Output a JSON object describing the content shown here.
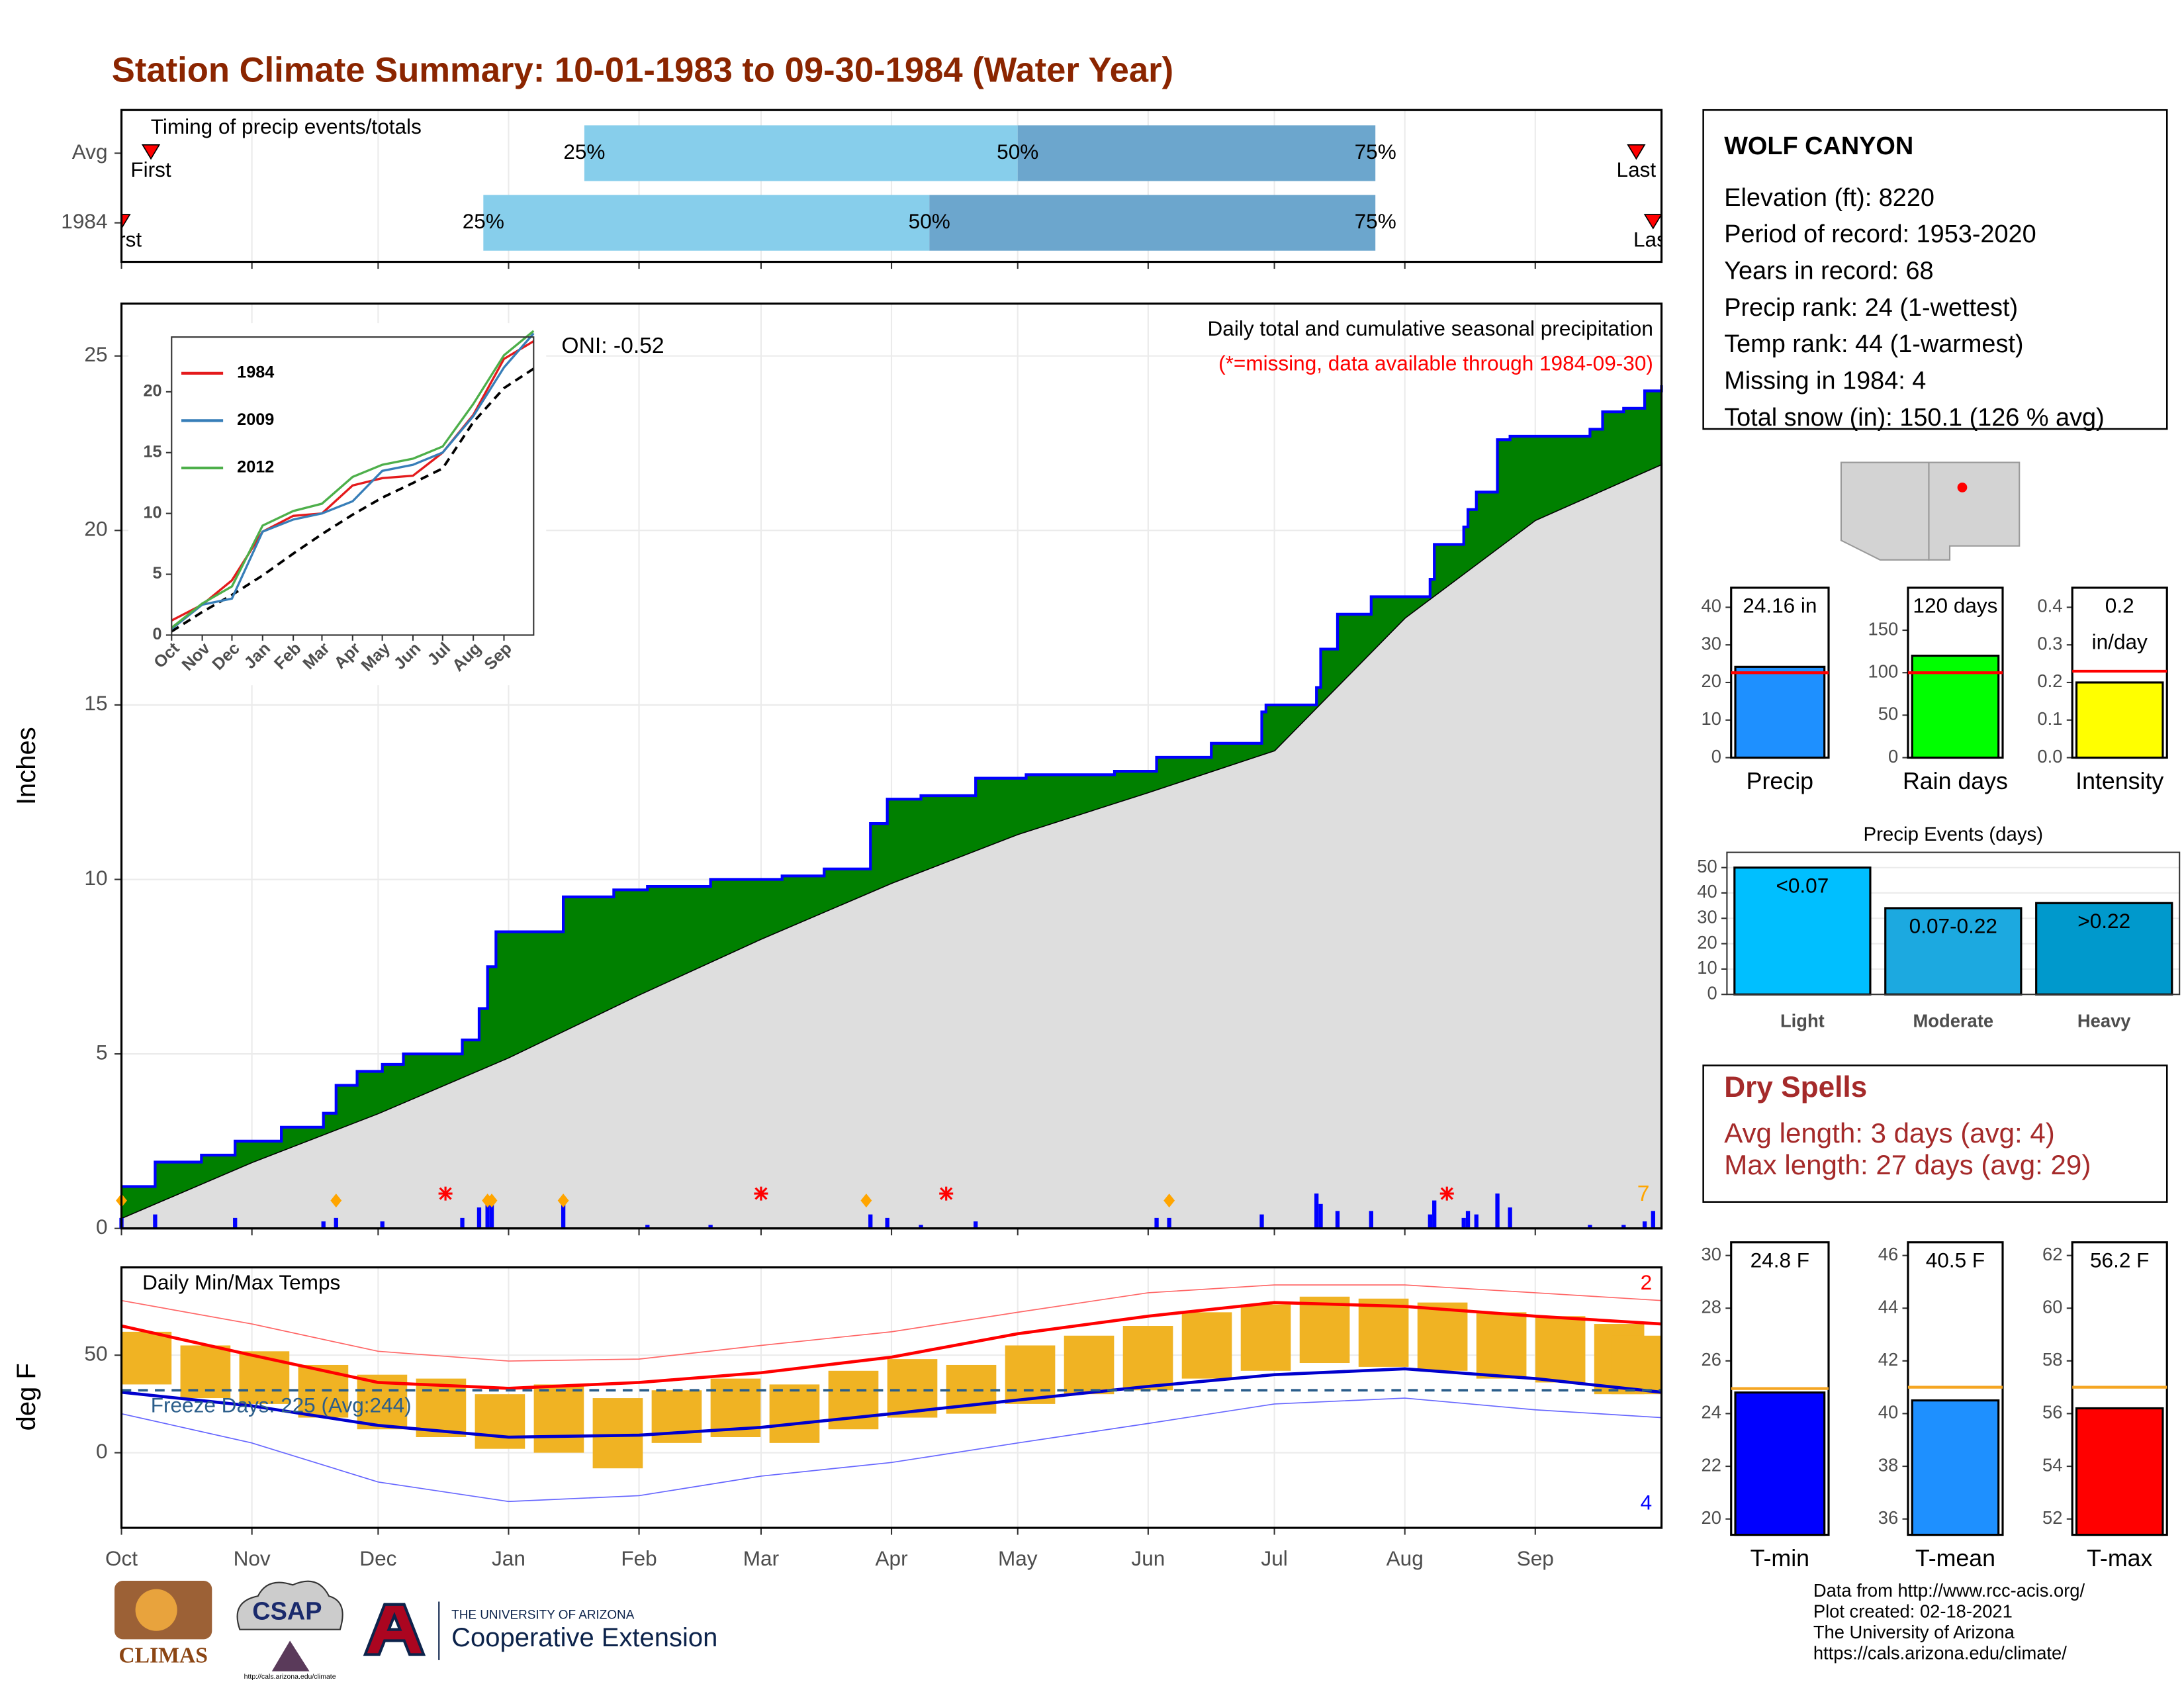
{
  "title": "Station Climate Summary: 10-01-1983 to 09-30-1984 (Water Year)",
  "chart_data": [
    {
      "type": "timing",
      "title": "Timing of precip events/totals",
      "xlim": [
        0,
        366
      ],
      "xticks": [
        0,
        31,
        61,
        92,
        123,
        152,
        183,
        213,
        244,
        274,
        305,
        336
      ],
      "rows": [
        {
          "name": "Avg",
          "first": 7,
          "first_label": "First",
          "last": 360,
          "last_label": "Last",
          "quartiles": [
            110,
            213,
            298
          ],
          "quartile_labels": [
            "25%",
            "50%",
            "75%"
          ]
        },
        {
          "name": "1984",
          "first": 0,
          "first_label": "First",
          "last": 364,
          "last_label": "Last",
          "quartiles": [
            86,
            192,
            298
          ],
          "quartile_labels": [
            "25%",
            "50%",
            "75%"
          ]
        }
      ]
    },
    {
      "type": "cumulative",
      "title": "Daily total and cumulative seasonal precipitation",
      "subtitle": "(*=missing, data available through 1984-09-30)",
      "annotation": "ONI: -0.52",
      "ylabel": "Inches",
      "xlim": [
        0,
        366
      ],
      "ylim": [
        0,
        26.5
      ],
      "yticks": [
        0,
        5,
        10,
        15,
        20,
        25
      ],
      "xticks": [
        0,
        31,
        61,
        92,
        123,
        152,
        183,
        213,
        244,
        274,
        305,
        336
      ],
      "cumulative_x": [
        0,
        8,
        19,
        27,
        38,
        48,
        51,
        56,
        62,
        67,
        81,
        85,
        87,
        89,
        105,
        117,
        125,
        140,
        157,
        167,
        178,
        182,
        190,
        203,
        215,
        236,
        246,
        259,
        271,
        272,
        284,
        285,
        289,
        297,
        311,
        312,
        319,
        320,
        322,
        327,
        330,
        349,
        352,
        357,
        362,
        366
      ],
      "cumulative": [
        1.2,
        1.9,
        2.1,
        2.5,
        2.9,
        3.3,
        4.1,
        4.5,
        4.7,
        5.0,
        5.4,
        6.3,
        7.5,
        8.5,
        9.5,
        9.7,
        9.8,
        10.0,
        10.1,
        10.3,
        11.6,
        12.3,
        12.4,
        12.9,
        13.0,
        13.1,
        13.5,
        13.9,
        14.8,
        15.0,
        15.5,
        16.6,
        17.6,
        18.1,
        18.6,
        19.6,
        20.1,
        20.6,
        21.1,
        22.6,
        22.7,
        22.9,
        23.4,
        23.5,
        24.0,
        24.16
      ],
      "cumulative_color": "#0000ff",
      "surplus_color": "#008000",
      "average_x": [
        0,
        31,
        61,
        92,
        123,
        152,
        183,
        213,
        244,
        274,
        305,
        336,
        366
      ],
      "average": [
        0.3,
        1.9,
        3.3,
        4.9,
        6.7,
        8.3,
        9.9,
        11.3,
        12.5,
        13.7,
        17.5,
        20.3,
        21.9
      ],
      "average_color": "#dedede",
      "daily_x": [
        0,
        8,
        27,
        48,
        51,
        62,
        81,
        85,
        87,
        88,
        105,
        125,
        140,
        178,
        182,
        190,
        203,
        246,
        249,
        271,
        284,
        285,
        289,
        297,
        311,
        312,
        319,
        320,
        322,
        327,
        330,
        349,
        357,
        362,
        364
      ],
      "daily": [
        0.3,
        0.4,
        0.3,
        0.2,
        0.3,
        0.2,
        0.3,
        0.6,
        0.8,
        0.8,
        0.8,
        0.1,
        0.1,
        0.4,
        0.3,
        0.1,
        0.2,
        0.3,
        0.3,
        0.4,
        1.0,
        0.7,
        0.5,
        0.5,
        0.4,
        0.8,
        0.3,
        0.5,
        0.4,
        1.0,
        0.6,
        0.1,
        0.1,
        0.2,
        0.5
      ],
      "daily_color": "#0000ff",
      "missing_x": [
        77,
        152,
        196,
        315
      ],
      "snow_x": [
        0,
        51,
        87,
        88,
        105,
        177,
        249
      ],
      "snow_count": 7
    },
    {
      "type": "line",
      "xlim": [
        0,
        366
      ],
      "ylim": [
        0,
        24.5
      ],
      "yticks": [
        0,
        5,
        10,
        15,
        20
      ],
      "xticks": [
        {
          "value": 0,
          "label": "Oct"
        },
        {
          "value": 31,
          "label": "Nov"
        },
        {
          "value": 61,
          "label": "Dec"
        },
        {
          "value": 92,
          "label": "Jan"
        },
        {
          "value": 123,
          "label": "Feb"
        },
        {
          "value": 152,
          "label": "Mar"
        },
        {
          "value": 183,
          "label": "Apr"
        },
        {
          "value": 213,
          "label": "May"
        },
        {
          "value": 244,
          "label": "Jun"
        },
        {
          "value": 274,
          "label": "Jul"
        },
        {
          "value": 305,
          "label": "Aug"
        },
        {
          "value": 336,
          "label": "Sep"
        }
      ],
      "x": [
        0,
        31,
        61,
        92,
        123,
        152,
        183,
        213,
        244,
        274,
        305,
        336,
        366
      ],
      "series": [
        {
          "name": "1984",
          "color": "#e41a1c",
          "values": [
            1.2,
            2.5,
            4.5,
            8.5,
            9.8,
            10.0,
            12.3,
            12.9,
            13.1,
            15.0,
            18.1,
            22.7,
            24.16
          ]
        },
        {
          "name": "2009",
          "color": "#377eb8",
          "values": [
            0.5,
            2.5,
            3.0,
            8.5,
            9.5,
            10.0,
            11.0,
            13.5,
            14.0,
            15.0,
            18.0,
            22.0,
            24.8
          ]
        },
        {
          "name": "2012",
          "color": "#4daf4a",
          "values": [
            0.6,
            2.6,
            4.0,
            9.0,
            10.2,
            10.8,
            13.0,
            14.0,
            14.5,
            15.5,
            19.0,
            23.0,
            25.0
          ]
        }
      ]
    },
    {
      "type": "temp",
      "title": "Daily Min/Max Temps",
      "ylabel": "deg F",
      "xlim": [
        0,
        366
      ],
      "ylim": [
        -38.5,
        95
      ],
      "yticks": [
        0,
        50
      ],
      "xticks": [
        {
          "value": 0,
          "label": "Oct"
        },
        {
          "value": 31,
          "label": "Nov"
        },
        {
          "value": 61,
          "label": "Dec"
        },
        {
          "value": 92,
          "label": "Jan"
        },
        {
          "value": 123,
          "label": "Feb"
        },
        {
          "value": 152,
          "label": "Mar"
        },
        {
          "value": 183,
          "label": "Apr"
        },
        {
          "value": 213,
          "label": "May"
        },
        {
          "value": 244,
          "label": "Jun"
        },
        {
          "value": 274,
          "label": "Jul"
        },
        {
          "value": 305,
          "label": "Aug"
        },
        {
          "value": 336,
          "label": "Sep"
        }
      ],
      "x": [
        0,
        31,
        61,
        92,
        123,
        152,
        183,
        213,
        244,
        274,
        305,
        336,
        366
      ],
      "avg_max": [
        65,
        50,
        36,
        33,
        36,
        41,
        49,
        61,
        70,
        77,
        75,
        70,
        66
      ],
      "avg_min": [
        31,
        24,
        14,
        8,
        9,
        13,
        20,
        27,
        34,
        40,
        43,
        38,
        31
      ],
      "record_max": [
        78,
        66,
        52,
        47,
        48,
        55,
        62,
        72,
        82,
        86,
        86,
        82,
        78
      ],
      "record_min": [
        20,
        5,
        -15,
        -25,
        -22,
        -12,
        -5,
        5,
        15,
        25,
        28,
        22,
        18
      ],
      "daily_x": [
        0,
        14,
        28,
        42,
        56,
        70,
        84,
        98,
        112,
        126,
        140,
        154,
        168,
        182,
        196,
        210,
        224,
        238,
        252,
        266,
        280,
        294,
        308,
        322,
        336,
        350,
        364
      ],
      "daily_max": [
        62,
        55,
        52,
        45,
        40,
        38,
        30,
        35,
        28,
        32,
        38,
        35,
        42,
        48,
        45,
        55,
        60,
        65,
        72,
        76,
        80,
        79,
        77,
        72,
        70,
        66,
        60
      ],
      "daily_min": [
        35,
        28,
        25,
        18,
        12,
        8,
        2,
        0,
        -8,
        5,
        8,
        5,
        12,
        18,
        20,
        25,
        30,
        32,
        38,
        42,
        46,
        44,
        42,
        38,
        36,
        30,
        30
      ],
      "daily_color": "#f0b323",
      "freeze_line": 32,
      "freeze_label": "Freeze Days: 225 (Avg:244)",
      "record_high_count": 2,
      "record_low_count": 4
    },
    {
      "type": "summary",
      "xlabel": "Precip",
      "value": 24.16,
      "value_label": [
        "24.16 in"
      ],
      "average": 22.6,
      "color": "#1e90ff",
      "average_color": "#ff0000",
      "ylim": [
        0,
        45.2
      ],
      "yticks": [
        0,
        10,
        20,
        30,
        40
      ]
    },
    {
      "type": "summary",
      "xlabel": "Rain days",
      "value": 120,
      "value_label": [
        "120 days"
      ],
      "average": 100,
      "color": "#00ff00",
      "average_color": "#ff0000",
      "ylim": [
        0,
        200
      ],
      "yticks": [
        0,
        50,
        100,
        150
      ]
    },
    {
      "type": "summary",
      "xlabel": "Intensity",
      "value": 0.2,
      "value_label": [
        "0.2",
        "in/day"
      ],
      "average": 0.23,
      "color": "#ffff00",
      "average_color": "#ff0000",
      "ylim": [
        0,
        0.452
      ],
      "yticks": [
        {
          "value": 0,
          "label": "0.0"
        },
        0.1,
        0.2,
        0.3,
        0.4
      ]
    },
    {
      "type": "bar",
      "title": "Precip Events (days)",
      "categories": [
        "Light",
        "Moderate",
        "Heavy"
      ],
      "values": [
        50,
        34,
        36
      ],
      "ranges": [
        "<0.07",
        "0.07-0.22",
        ">0.22"
      ],
      "colors": [
        "#00bfff",
        "#1ca9e0",
        "#0099cc"
      ],
      "ylim": [
        0,
        56
      ],
      "yticks": [
        0,
        10,
        20,
        30,
        40,
        50
      ]
    },
    {
      "type": "summary",
      "xlabel": "T-min",
      "value": 24.8,
      "value_label": [
        "24.8 F"
      ],
      "average": 24.95,
      "color": "#0000ff",
      "average_color": "#f5a623",
      "ylim": [
        19.4,
        30.5
      ],
      "yticks": [
        20,
        22,
        24,
        26,
        28,
        30
      ]
    },
    {
      "type": "summary",
      "xlabel": "T-mean",
      "value": 40.5,
      "value_label": [
        "40.5 F"
      ],
      "average": 41.0,
      "color": "#1e90ff",
      "average_color": "#f5a623",
      "ylim": [
        35.4,
        46.5
      ],
      "yticks": [
        36,
        38,
        40,
        42,
        44,
        46
      ]
    },
    {
      "type": "summary",
      "xlabel": "T-max",
      "value": 56.2,
      "value_label": [
        "56.2 F"
      ],
      "average": 57.0,
      "color": "#ff0000",
      "average_color": "#f5a623",
      "ylim": [
        51.4,
        62.5
      ],
      "yticks": [
        52,
        54,
        56,
        58,
        60,
        62
      ]
    }
  ],
  "station": {
    "name": "WOLF CANYON",
    "lines": [
      "Elevation (ft): 8220",
      "Period of record: 1953-2020",
      "Years in record: 68",
      "Precip rank: 24 (1-wettest)",
      "Temp rank: 44 (1-warmest)",
      "Missing in 1984: 4",
      "Total snow (in): 150.1 (126 % avg)"
    ]
  },
  "dry_spells": {
    "title": "Dry Spells",
    "lines": [
      "Avg length: 3 days (avg: 4)",
      "Max length: 27 days (avg: 29)"
    ]
  },
  "footer": {
    "lines": [
      "Data from http://www.rcc-acis.org/",
      "Plot created: 02-18-2021",
      "The University of Arizona",
      "https://cals.arizona.edu/climate/"
    ]
  },
  "logos": {
    "climas": "CLIMAS",
    "csap": "CSAP",
    "csap_url": "http://cals.arizona.edu/climate",
    "university": "THE UNIVERSITY OF ARIZONA",
    "extension": "Cooperative Extension"
  }
}
